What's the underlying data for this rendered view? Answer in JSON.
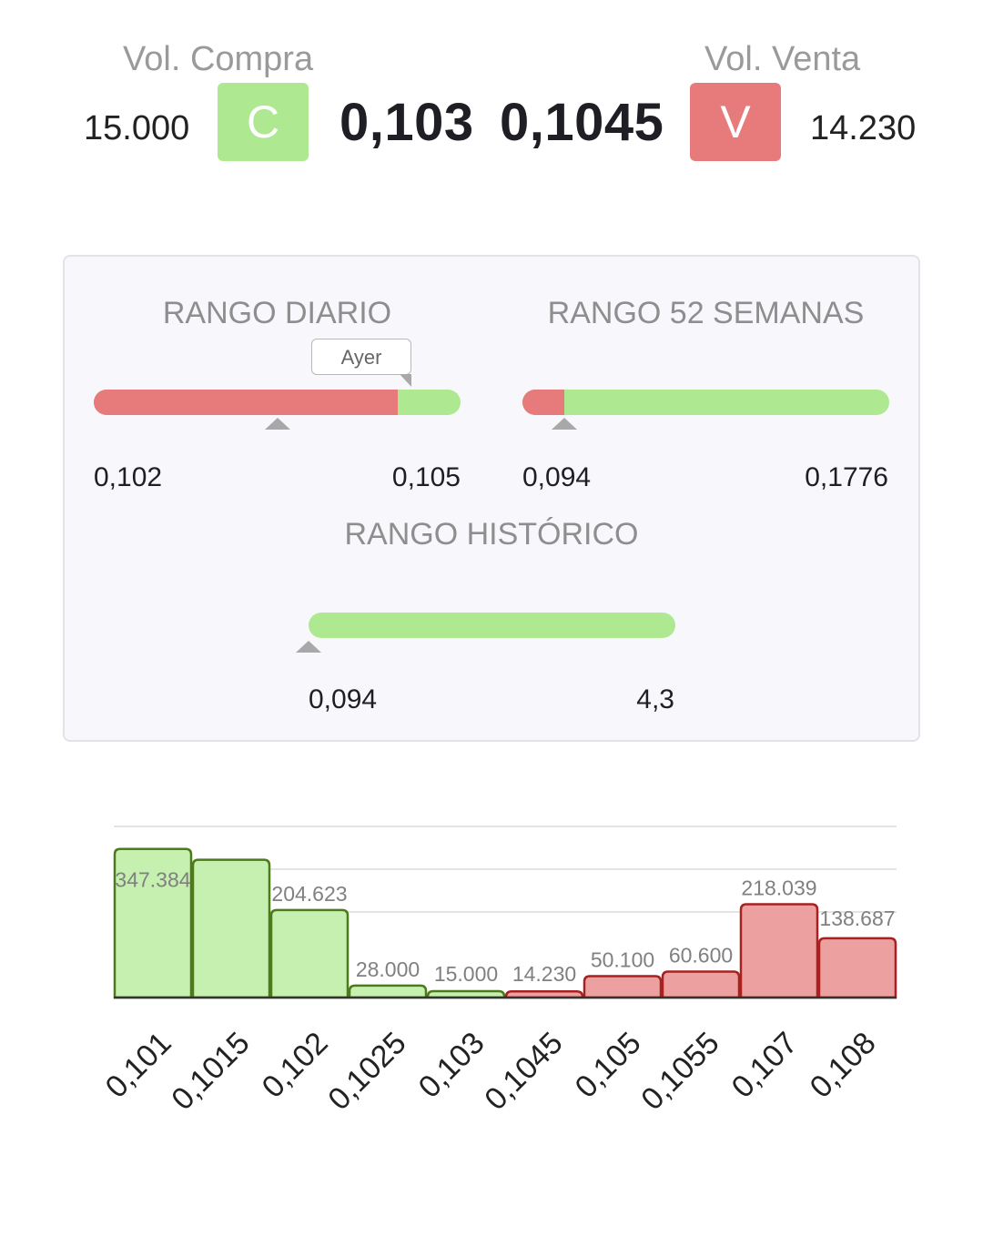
{
  "header": {
    "buy_label": "Vol. Compra",
    "buy_volume": "15.000",
    "buy_button": "C",
    "bid_price": "0,103",
    "ask_price": "0,1045",
    "sell_button": "V",
    "sell_label": "Vol. Venta",
    "sell_volume": "14.230"
  },
  "colors": {
    "buy_green": "#aee991",
    "sell_red": "#e77a7a",
    "bar_green_fill": "#c5f0b0",
    "bar_green_stroke": "#4f7a1c",
    "bar_red_fill": "#eda0a0",
    "bar_red_stroke": "#a82020"
  },
  "ranges": {
    "daily": {
      "title": "RANGO DIARIO",
      "min": "0,102",
      "max": "0,105",
      "tooltip": "Ayer",
      "red_fraction": 0.83,
      "marker_fraction": 0.5,
      "yesterday_fraction": 0.83
    },
    "week52": {
      "title": "RANGO 52 SEMANAS",
      "min": "0,094",
      "max": "0,1776",
      "red_fraction": 0.115,
      "marker_fraction": 0.115
    },
    "historic": {
      "title": "RANGO HISTÓRICO",
      "min": "0,094",
      "max": "4,3",
      "red_fraction": 0.0,
      "marker_fraction": 0.0
    }
  },
  "chart_data": {
    "type": "bar",
    "categories": [
      "0,101",
      "0,1015",
      "0,102",
      "0,1025",
      "0,103",
      "0,1045",
      "0,105",
      "0,1055",
      "0,107",
      "0,108"
    ],
    "values": [
      347384,
      322000,
      204623,
      28000,
      15000,
      14230,
      50100,
      60600,
      218039,
      138687
    ],
    "labels": [
      "347.384",
      "",
      "204.623",
      "28.000",
      "15.000",
      "14.230",
      "50.100",
      "60.600",
      "218.039",
      "138.687"
    ],
    "sides": [
      "buy",
      "buy",
      "buy",
      "buy",
      "buy",
      "sell",
      "sell",
      "sell",
      "sell",
      "sell"
    ],
    "ylim": [
      0,
      400000
    ],
    "grid": true
  }
}
